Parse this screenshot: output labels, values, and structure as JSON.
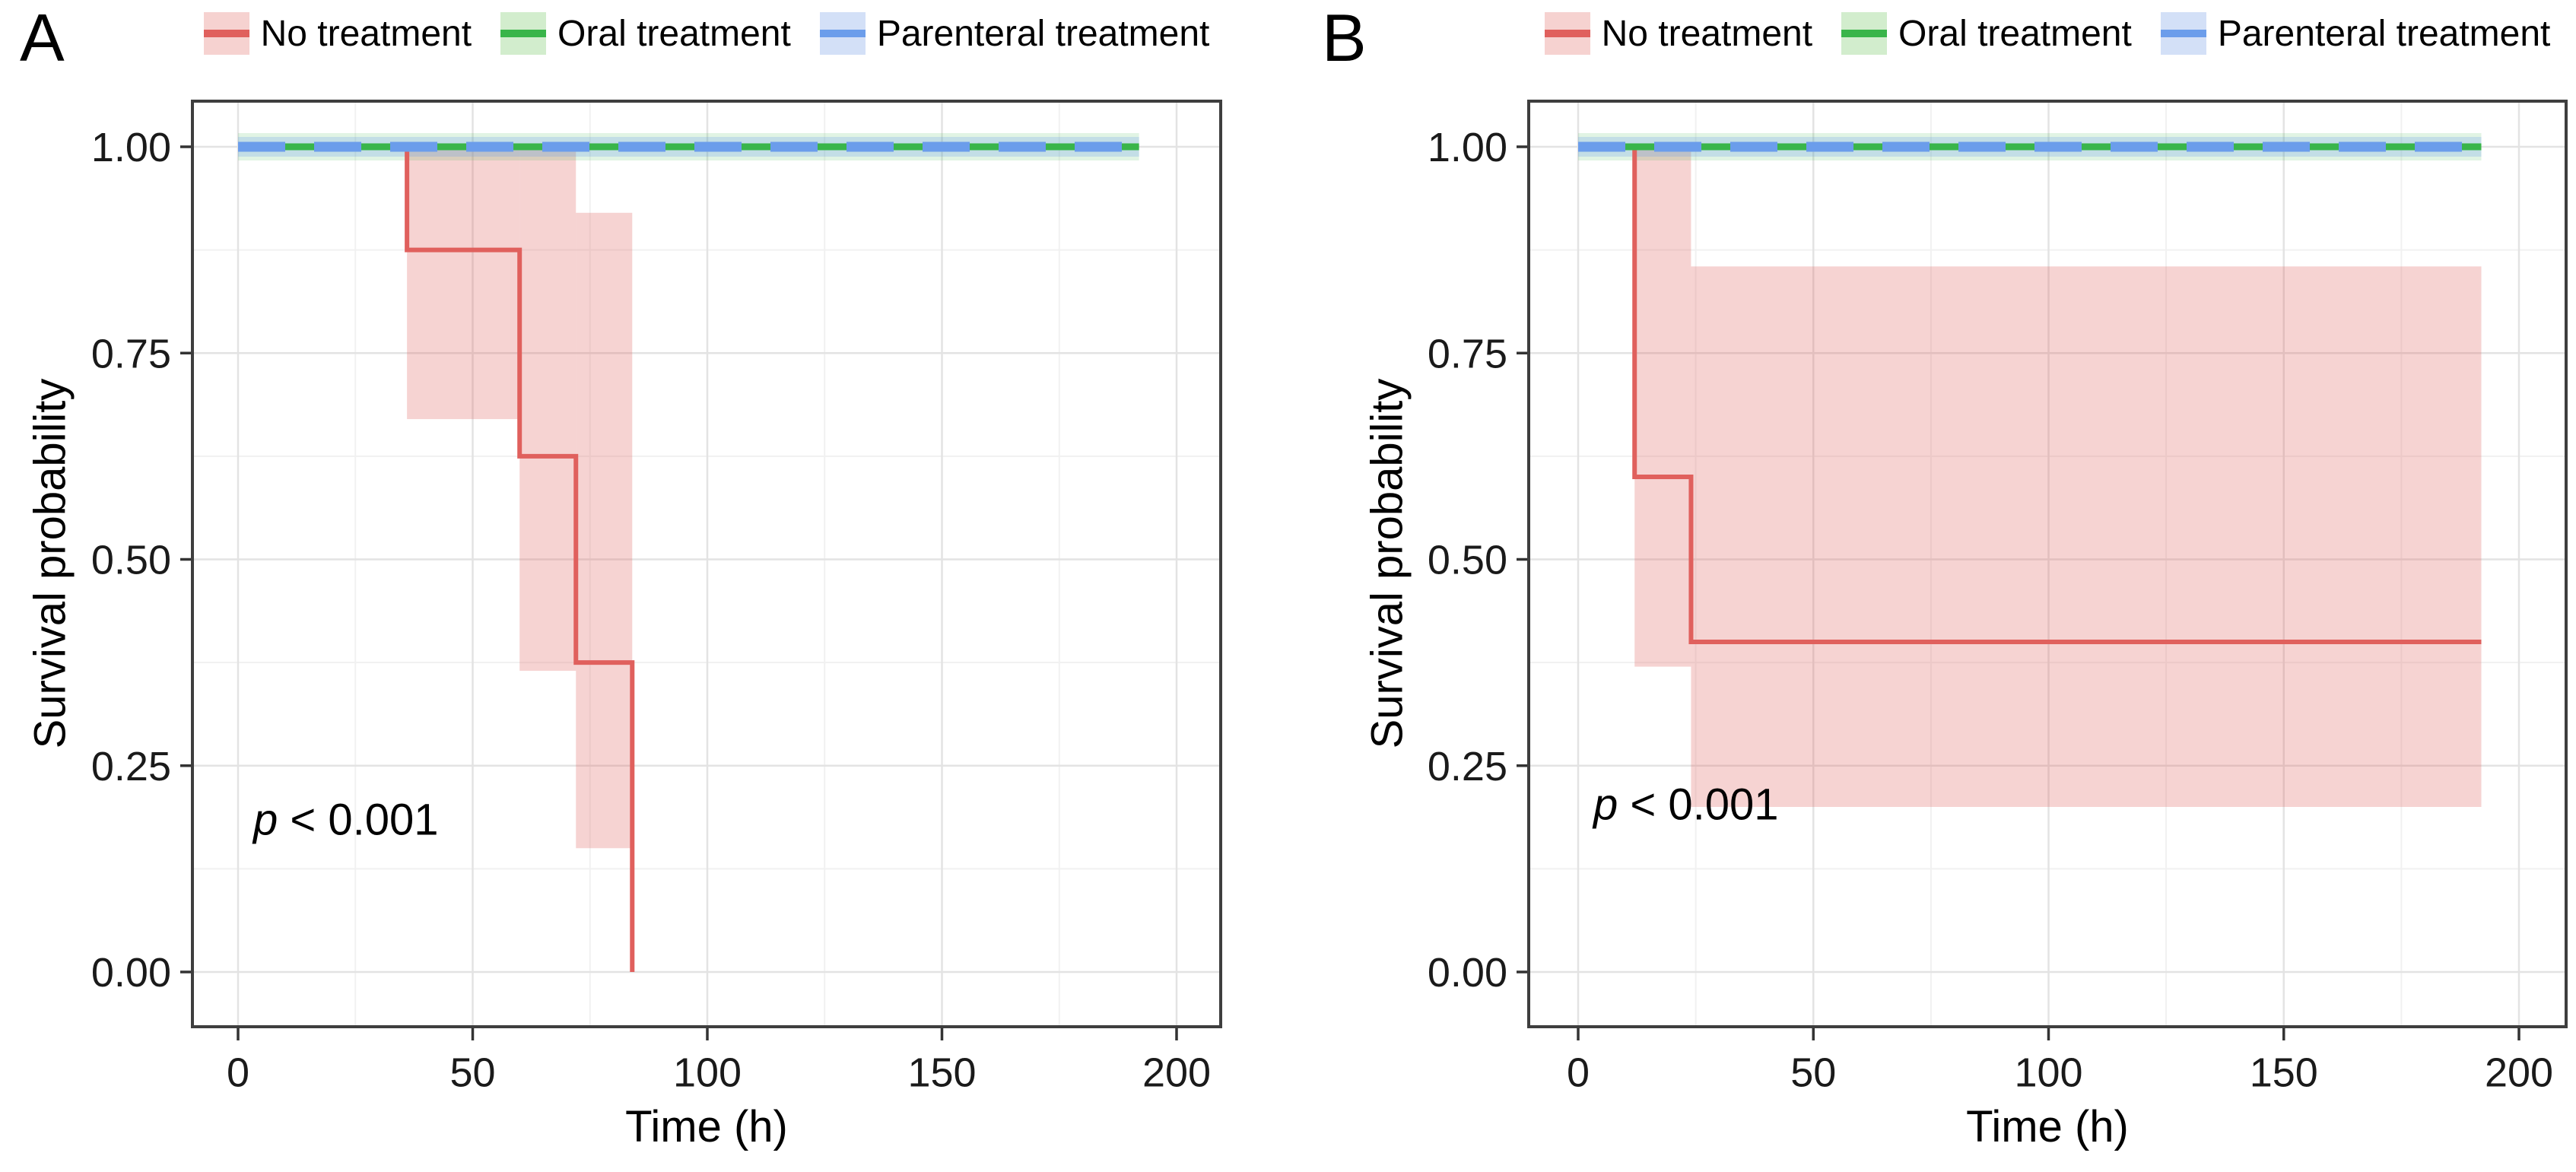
{
  "colors": {
    "red_line": "#e0605d",
    "red_fill": "rgba(224,96,93,0.28)",
    "green_line": "#39b54a",
    "green_halo": "rgba(57,181,74,0.15)",
    "blue_line": "#6b9deb",
    "blue_halo": "rgba(107,157,235,0.25)",
    "grid_major": "#e3e3e3",
    "grid_minor": "#f1f1f1",
    "panel_border": "#3e3e3e",
    "tick_mark": "#333333",
    "tick_text": "#1a1a1a"
  },
  "legend": {
    "items": [
      {
        "label": "No treatment",
        "line": "#e0605d",
        "fill": "#f6d2d0"
      },
      {
        "label": "Oral treatment",
        "line": "#39b54a",
        "fill": "#d2edcd"
      },
      {
        "label": "Parenteral treatment",
        "line": "#6b9deb",
        "fill": "#d3e0f7"
      }
    ]
  },
  "chart_data": [
    {
      "type": "line",
      "subtype": "kaplan-meier-step",
      "panel_label": "A",
      "xlabel": "Time (h)",
      "ylabel": "Survival probability",
      "annotation": "p < 0.001",
      "x_axis": {
        "ticks": [
          0,
          50,
          100,
          150,
          200
        ],
        "tick_labels": [
          "0",
          "50",
          "100",
          "150",
          "200"
        ],
        "minor_ticks": [
          25,
          75,
          125,
          175
        ],
        "range": [
          -10,
          210
        ]
      },
      "y_axis": {
        "ticks": [
          1.0,
          0.75,
          0.5,
          0.25,
          0.0
        ],
        "tick_labels": [
          "1.00",
          "0.75",
          "0.50",
          "0.25",
          "0.00"
        ],
        "minor_ticks": [
          0.875,
          0.625,
          0.375,
          0.125
        ],
        "range": [
          -0.05,
          1.05
        ]
      },
      "legend_position": "top",
      "grid": true,
      "series": [
        {
          "name": "No treatment",
          "style": "step",
          "points": [
            [
              0,
              1.0
            ],
            [
              36,
              1.0
            ],
            [
              36,
              0.875
            ],
            [
              60,
              0.875
            ],
            [
              60,
              0.625
            ],
            [
              72,
              0.625
            ],
            [
              72,
              0.375
            ],
            [
              84,
              0.375
            ],
            [
              84,
              0.0
            ]
          ],
          "ci_bands": [
            {
              "x": [
                36,
                60
              ],
              "lower": 0.67,
              "upper": 1.0
            },
            {
              "x": [
                60,
                72
              ],
              "lower": 0.365,
              "upper": 1.0
            },
            {
              "x": [
                72,
                84
              ],
              "lower": 0.15,
              "upper": 0.92
            }
          ]
        },
        {
          "name": "Oral treatment",
          "style": "solid",
          "points": [
            [
              0,
              1.0
            ],
            [
              192,
              1.0
            ]
          ]
        },
        {
          "name": "Parenteral treatment",
          "style": "dashed",
          "points": [
            [
              0,
              1.0
            ],
            [
              192,
              1.0
            ]
          ]
        }
      ]
    },
    {
      "type": "line",
      "subtype": "kaplan-meier-step",
      "panel_label": "B",
      "xlabel": "Time (h)",
      "ylabel": "Survival probability",
      "annotation": "p < 0.001",
      "x_axis": {
        "ticks": [
          0,
          50,
          100,
          150,
          200
        ],
        "tick_labels": [
          "0",
          "50",
          "100",
          "150",
          "200"
        ],
        "minor_ticks": [
          25,
          75,
          125,
          175
        ],
        "range": [
          -10,
          210
        ]
      },
      "y_axis": {
        "ticks": [
          1.0,
          0.75,
          0.5,
          0.25,
          0.0
        ],
        "tick_labels": [
          "1.00",
          "0.75",
          "0.50",
          "0.25",
          "0.00"
        ],
        "minor_ticks": [
          0.875,
          0.625,
          0.375,
          0.125
        ],
        "range": [
          -0.05,
          1.05
        ]
      },
      "legend_position": "top",
      "grid": true,
      "series": [
        {
          "name": "No treatment",
          "style": "step",
          "points": [
            [
              0,
              1.0
            ],
            [
              12,
              1.0
            ],
            [
              12,
              0.6
            ],
            [
              24,
              0.6
            ],
            [
              24,
              0.4
            ],
            [
              192,
              0.4
            ]
          ],
          "ci_bands": [
            {
              "x": [
                12,
                24
              ],
              "lower": 0.37,
              "upper": 1.0
            },
            {
              "x": [
                24,
                192
              ],
              "lower": 0.2,
              "upper": 0.855
            }
          ]
        },
        {
          "name": "Oral treatment",
          "style": "solid",
          "points": [
            [
              0,
              1.0
            ],
            [
              192,
              1.0
            ]
          ]
        },
        {
          "name": "Parenteral treatment",
          "style": "dashed",
          "points": [
            [
              0,
              1.0
            ],
            [
              192,
              1.0
            ]
          ]
        }
      ]
    }
  ]
}
